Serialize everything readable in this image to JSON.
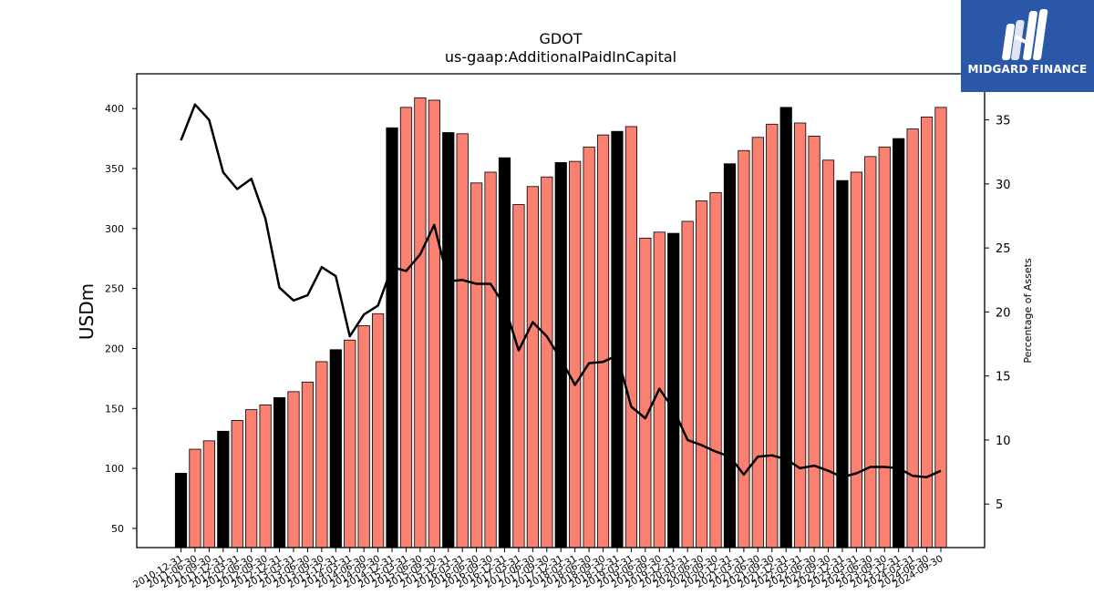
{
  "brand": {
    "name": "MIDGARD FINANCE",
    "bg_color": "#2b57a8"
  },
  "chart_data": {
    "type": "bar",
    "title": "GDOT",
    "subtitle": "us-gaap:AdditionalPaidInCapital",
    "ylabel": "USDm",
    "y2label": "Percentage of Assets",
    "ylim": [
      34,
      429
    ],
    "y2lim": [
      1.6,
      38.6
    ],
    "yticks": [
      50,
      100,
      150,
      200,
      250,
      300,
      350,
      400
    ],
    "y2ticks": [
      5,
      10,
      15,
      20,
      25,
      30,
      35
    ],
    "colors": {
      "annual": "#000000",
      "quarterly": "#fa8072",
      "line": "#000000"
    },
    "categories": [
      "2010-12-31",
      "2011-06-30",
      "2011-09-30",
      "2011-12-31",
      "2012-03-31",
      "2012-06-30",
      "2012-09-30",
      "2012-12-31",
      "2013-03-31",
      "2013-06-30",
      "2013-09-30",
      "2013-12-31",
      "2014-03-31",
      "2014-06-30",
      "2014-09-30",
      "2014-12-31",
      "2015-03-31",
      "2015-06-30",
      "2015-09-30",
      "2015-12-31",
      "2016-03-31",
      "2016-06-30",
      "2016-09-30",
      "2016-12-31",
      "2017-03-31",
      "2017-06-30",
      "2017-09-30",
      "2017-12-31",
      "2018-03-31",
      "2018-06-30",
      "2018-09-30",
      "2018-12-31",
      "2019-03-31",
      "2019-06-30",
      "2019-09-30",
      "2019-12-31",
      "2020-03-31",
      "2020-06-30",
      "2020-09-30",
      "2020-12-31",
      "2021-03-31",
      "2021-06-30",
      "2021-09-30",
      "2021-12-31",
      "2022-03-31",
      "2022-06-30",
      "2022-09-30",
      "2022-12-31",
      "2023-03-31",
      "2023-06-30",
      "2023-09-30",
      "2023-12-31",
      "2024-03-31",
      "2024-06-30",
      "2024-09-30"
    ],
    "series": [
      {
        "kind": "bar",
        "values": [
          96,
          116,
          123,
          131,
          140,
          149,
          153,
          159,
          164,
          172,
          189,
          199,
          207,
          219,
          229,
          384,
          401,
          409,
          407,
          380,
          379,
          338,
          347,
          359,
          320,
          335,
          343,
          355,
          356,
          368,
          378,
          381,
          385,
          292,
          297,
          296,
          306,
          323,
          330,
          354,
          365,
          376,
          387,
          401,
          388,
          377,
          357,
          340,
          347,
          360,
          368,
          375,
          383,
          393,
          401
        ],
        "annual": [
          true,
          false,
          false,
          true,
          false,
          false,
          false,
          true,
          false,
          false,
          false,
          true,
          false,
          false,
          false,
          true,
          false,
          false,
          false,
          true,
          false,
          false,
          false,
          true,
          false,
          false,
          false,
          true,
          false,
          false,
          false,
          true,
          false,
          false,
          false,
          true,
          false,
          false,
          false,
          true,
          false,
          false,
          false,
          true,
          false,
          false,
          false,
          true,
          false,
          false,
          false,
          true,
          false,
          false,
          false
        ]
      },
      {
        "kind": "line",
        "axis": "right",
        "values": [
          33.4,
          36.2,
          35.0,
          30.9,
          29.6,
          30.4,
          27.3,
          21.9,
          20.9,
          21.3,
          23.5,
          22.8,
          18.1,
          19.8,
          20.5,
          23.5,
          23.2,
          24.5,
          26.8,
          22.4,
          22.5,
          22.2,
          22.2,
          20.5,
          17.0,
          19.2,
          18.1,
          16.3,
          14.3,
          16.0,
          16.1,
          16.6,
          12.6,
          11.7,
          14.0,
          12.4,
          10.0,
          9.6,
          9.1,
          8.7,
          7.3,
          8.7,
          8.8,
          8.5,
          7.8,
          8.0,
          7.6,
          7.1,
          7.4,
          7.9,
          7.9,
          7.8,
          7.2,
          7.1,
          7.6
        ]
      }
    ]
  }
}
